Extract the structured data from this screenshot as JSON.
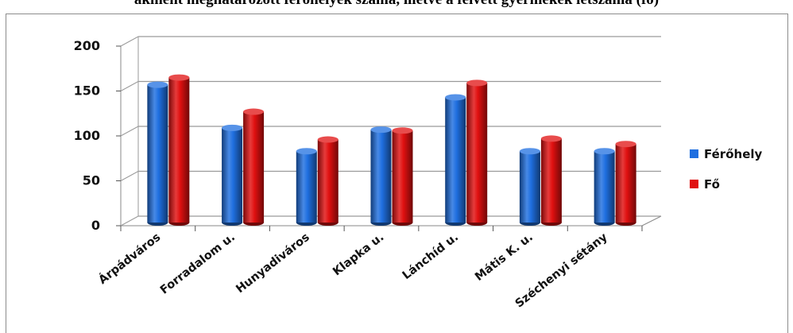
{
  "chart_data": {
    "type": "bar",
    "title": "ákmént megnatarozott férőhelyek száma, illetve a felvett gyermekek létszáma (fő)",
    "categories": [
      "Árpádváros",
      "Forradalom u.",
      "Hunyadiváros",
      "Klapka u.",
      "Lánchíd u.",
      "Mátis K. u.",
      "Széchenyi sétány"
    ],
    "series": [
      {
        "name": "Férőhely",
        "color": "#1f6fe0",
        "values": [
          149,
          101,
          75,
          99,
          135,
          75,
          75
        ]
      },
      {
        "name": "Fő",
        "color": "#e01010",
        "values": [
          157,
          119,
          88,
          98,
          151,
          89,
          83
        ]
      }
    ],
    "ylim": [
      0,
      200
    ],
    "yticks": [
      0,
      50,
      100,
      150,
      200
    ],
    "grid": true,
    "legend_position": "right",
    "xlabel": "",
    "ylabel": ""
  }
}
